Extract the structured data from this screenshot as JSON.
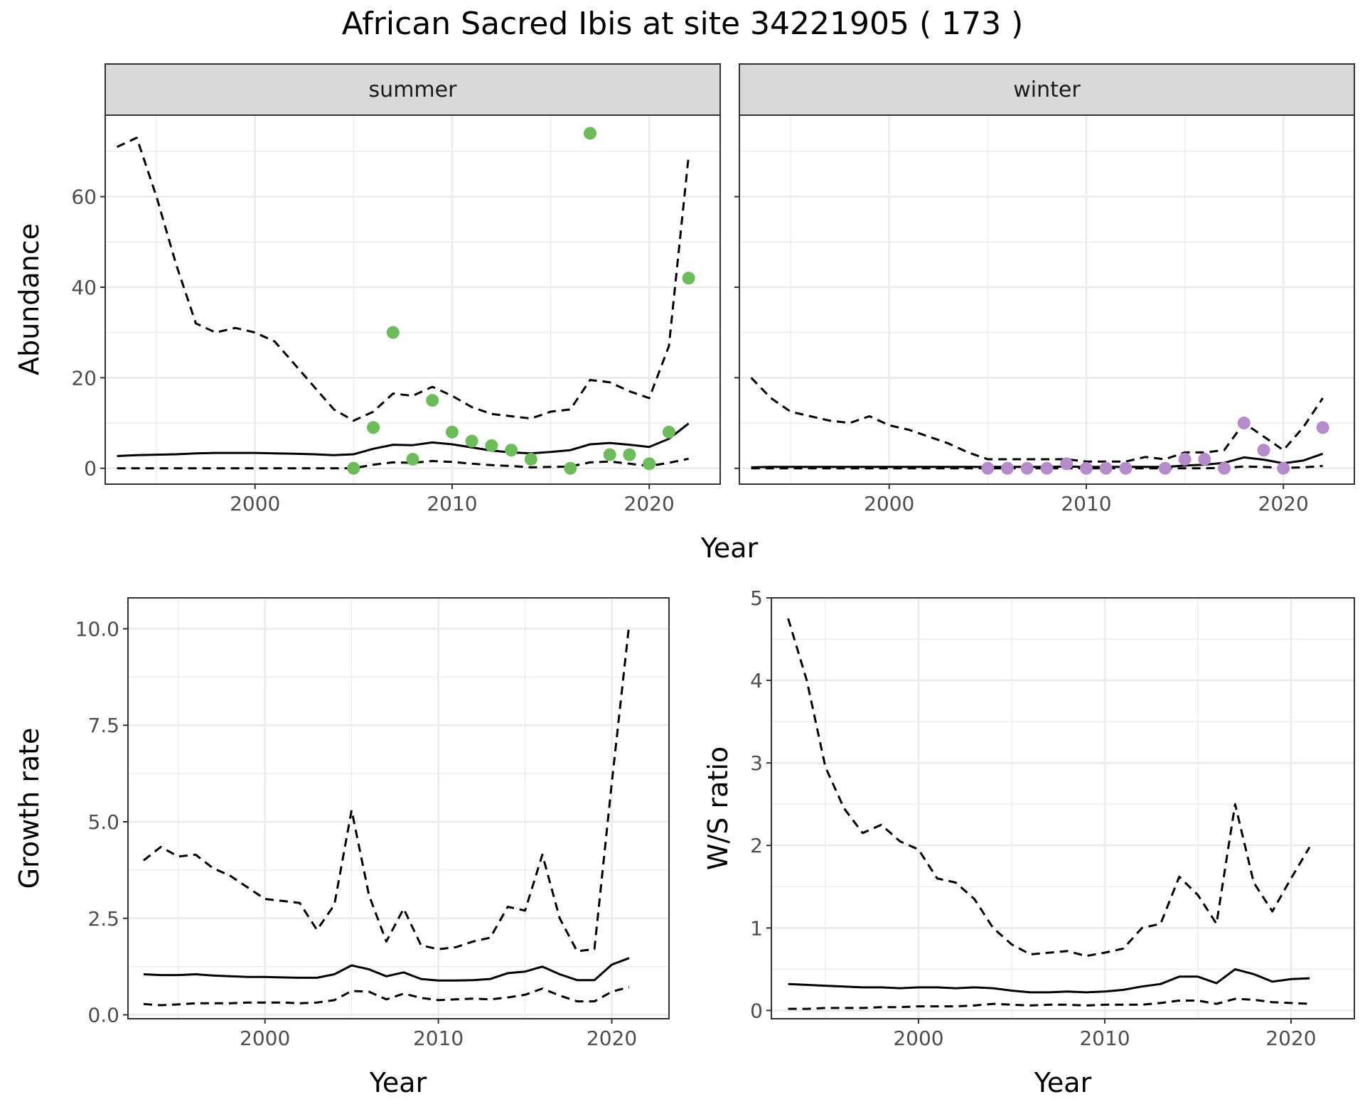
{
  "title": "African Sacred Ibis at site 34221905 ( 173 )",
  "colors": {
    "summer_points": "#6cbd5a",
    "winter_points": "#b48ccb",
    "line": "#000000",
    "strip_fill": "#d9d9d9",
    "grid": "#ebebeb"
  },
  "chart_data": [
    {
      "type": "line",
      "subtype": "faceted line + scatter",
      "ylabel": "Abundance",
      "xlabel": "Year",
      "xlim": [
        1992.4,
        2023.6
      ],
      "ylim": [
        -3.5,
        78
      ],
      "x_ticks": [
        2000,
        2010,
        2020
      ],
      "y_ticks": [
        0,
        20,
        40,
        60
      ],
      "grid": true,
      "facets": [
        {
          "label": "summer",
          "series": [
            {
              "style": "dashed",
              "x": [
                1993,
                1994,
                1995,
                1996,
                1997,
                1998,
                1999,
                2000,
                2001,
                2002,
                2003,
                2004,
                2005,
                2006,
                2007,
                2008,
                2009,
                2010,
                2011,
                2012,
                2013,
                2014,
                2015,
                2016,
                2017,
                2018,
                2019,
                2020,
                2021,
                2022
              ],
              "values": [
                71,
                73,
                60,
                45,
                32,
                30,
                31,
                30,
                28,
                23,
                18,
                13,
                10.5,
                12.5,
                16.5,
                16,
                18,
                16,
                13.5,
                12,
                11.5,
                11,
                12.5,
                13,
                19.5,
                19,
                17,
                15.5,
                27,
                69
              ]
            },
            {
              "style": "solid",
              "x": [
                1993,
                1994,
                1995,
                1996,
                1997,
                1998,
                1999,
                2000,
                2001,
                2002,
                2003,
                2004,
                2005,
                2006,
                2007,
                2008,
                2009,
                2010,
                2011,
                2012,
                2013,
                2014,
                2015,
                2016,
                2017,
                2018,
                2019,
                2020,
                2021,
                2022
              ],
              "values": [
                2.7,
                2.9,
                3.0,
                3.1,
                3.3,
                3.4,
                3.4,
                3.4,
                3.3,
                3.2,
                3.1,
                2.9,
                3.1,
                4.3,
                5.2,
                5.1,
                5.7,
                5.3,
                4.6,
                3.9,
                3.5,
                3.3,
                3.6,
                4.0,
                5.3,
                5.6,
                5.2,
                4.7,
                6.5,
                9.9
              ]
            },
            {
              "style": "dashed",
              "x": [
                1993,
                1994,
                1995,
                1996,
                1997,
                1998,
                1999,
                2000,
                2001,
                2002,
                2003,
                2004,
                2005,
                2006,
                2007,
                2008,
                2009,
                2010,
                2011,
                2012,
                2013,
                2014,
                2015,
                2016,
                2017,
                2018,
                2019,
                2020,
                2021,
                2022
              ],
              "values": [
                0,
                0,
                0,
                0,
                0,
                0,
                0,
                0,
                0,
                0,
                0,
                0,
                0,
                0.8,
                1.3,
                1.2,
                1.6,
                1.4,
                1.0,
                0.7,
                0.5,
                0.2,
                0.3,
                0.4,
                1.3,
                1.5,
                1.0,
                0.5,
                1.2,
                2.1
              ]
            },
            {
              "style": "points",
              "x": [
                2005,
                2006,
                2007,
                2008,
                2009,
                2010,
                2011,
                2012,
                2013,
                2014,
                2016,
                2017,
                2018,
                2019,
                2020,
                2021,
                2022
              ],
              "values": [
                0,
                9,
                30,
                2,
                15,
                8,
                6,
                5,
                4,
                2,
                0,
                74,
                3,
                3,
                1,
                8,
                42
              ]
            }
          ]
        },
        {
          "label": "winter",
          "series": [
            {
              "style": "dashed",
              "x": [
                1993,
                1994,
                1995,
                1996,
                1997,
                1998,
                1999,
                2000,
                2001,
                2002,
                2003,
                2004,
                2005,
                2006,
                2007,
                2008,
                2009,
                2010,
                2011,
                2012,
                2013,
                2014,
                2015,
                2016,
                2017,
                2018,
                2019,
                2020,
                2021,
                2022
              ],
              "values": [
                20,
                15.5,
                12.5,
                11.5,
                10.5,
                10,
                11.5,
                9.5,
                8.5,
                7,
                5.5,
                3.5,
                2,
                2,
                2,
                2,
                2,
                1.5,
                1.5,
                1.5,
                2.5,
                2,
                3.5,
                3.5,
                4,
                10,
                7,
                4,
                9,
                15.5
              ]
            },
            {
              "style": "solid",
              "x": [
                1993,
                1994,
                1995,
                1996,
                1997,
                1998,
                1999,
                2000,
                2001,
                2002,
                2003,
                2004,
                2005,
                2006,
                2007,
                2008,
                2009,
                2010,
                2011,
                2012,
                2013,
                2014,
                2015,
                2016,
                2017,
                2018,
                2019,
                2020,
                2021,
                2022
              ],
              "values": [
                0.2,
                0.3,
                0.3,
                0.3,
                0.3,
                0.3,
                0.3,
                0.3,
                0.3,
                0.3,
                0.3,
                0.3,
                0.3,
                0.3,
                0.3,
                0.3,
                0.4,
                0.3,
                0.3,
                0.3,
                0.3,
                0.3,
                0.6,
                0.8,
                1.2,
                2.4,
                1.9,
                1.1,
                1.7,
                3.2
              ]
            },
            {
              "style": "dashed",
              "x": [
                1993,
                1994,
                1995,
                1996,
                1997,
                1998,
                1999,
                2000,
                2001,
                2002,
                2003,
                2004,
                2005,
                2006,
                2007,
                2008,
                2009,
                2010,
                2011,
                2012,
                2013,
                2014,
                2015,
                2016,
                2017,
                2018,
                2019,
                2020,
                2021,
                2022
              ],
              "values": [
                0,
                0,
                0,
                0,
                0,
                0,
                0,
                0,
                0,
                0,
                0,
                0,
                0,
                0,
                0,
                0,
                0,
                0,
                0,
                0,
                0,
                0,
                0,
                0,
                0.1,
                0.4,
                0.3,
                0.1,
                0.2,
                0.5
              ]
            },
            {
              "style": "points",
              "x": [
                2005,
                2006,
                2007,
                2008,
                2009,
                2010,
                2011,
                2012,
                2014,
                2015,
                2016,
                2017,
                2018,
                2019,
                2020,
                2022
              ],
              "values": [
                0,
                0,
                0,
                0,
                1,
                0,
                0,
                0,
                0,
                2,
                2,
                0,
                10,
                4,
                0,
                9
              ]
            }
          ]
        }
      ]
    },
    {
      "type": "line",
      "ylabel": "Growth rate",
      "xlabel": "Year",
      "xlim": [
        1992.1,
        2023.3
      ],
      "ylim": [
        -0.1,
        10.8
      ],
      "x_ticks": [
        2000,
        2010,
        2020
      ],
      "y_ticks": [
        0.0,
        2.5,
        5.0,
        7.5,
        10.0
      ],
      "y_tick_labels": [
        "0.0",
        "2.5",
        "5.0",
        "7.5",
        "10.0"
      ],
      "grid": true,
      "series": [
        {
          "style": "dashed",
          "x": [
            1993,
            1994,
            1995,
            1996,
            1997,
            1998,
            1999,
            2000,
            2001,
            2002,
            2003,
            2004,
            2005,
            2006,
            2007,
            2008,
            2009,
            2010,
            2011,
            2012,
            2013,
            2014,
            2015,
            2016,
            2017,
            2018,
            2019,
            2020,
            2021
          ],
          "values": [
            4.0,
            4.35,
            4.1,
            4.15,
            3.8,
            3.6,
            3.3,
            3.0,
            2.95,
            2.9,
            2.2,
            2.85,
            5.3,
            3.1,
            1.9,
            2.75,
            1.8,
            1.7,
            1.75,
            1.9,
            2.0,
            2.8,
            2.7,
            4.15,
            2.5,
            1.65,
            1.7,
            6.0,
            10.1
          ]
        },
        {
          "style": "solid",
          "x": [
            1993,
            1994,
            1995,
            1996,
            1997,
            1998,
            1999,
            2000,
            2001,
            2002,
            2003,
            2004,
            2005,
            2006,
            2007,
            2008,
            2009,
            2010,
            2011,
            2012,
            2013,
            2014,
            2015,
            2016,
            2017,
            2018,
            2019,
            2020,
            2021
          ],
          "values": [
            1.05,
            1.03,
            1.03,
            1.05,
            1.02,
            1.0,
            0.98,
            0.98,
            0.97,
            0.96,
            0.96,
            1.05,
            1.28,
            1.18,
            1.0,
            1.1,
            0.93,
            0.89,
            0.89,
            0.9,
            0.93,
            1.08,
            1.12,
            1.25,
            1.05,
            0.9,
            0.9,
            1.3,
            1.47
          ]
        },
        {
          "style": "dashed",
          "x": [
            1993,
            1994,
            1995,
            1996,
            1997,
            1998,
            1999,
            2000,
            2001,
            2002,
            2003,
            2004,
            2005,
            2006,
            2007,
            2008,
            2009,
            2010,
            2011,
            2012,
            2013,
            2014,
            2015,
            2016,
            2017,
            2018,
            2019,
            2020,
            2021
          ],
          "values": [
            0.28,
            0.25,
            0.27,
            0.3,
            0.3,
            0.3,
            0.32,
            0.32,
            0.32,
            0.3,
            0.32,
            0.38,
            0.62,
            0.6,
            0.4,
            0.55,
            0.44,
            0.38,
            0.4,
            0.42,
            0.4,
            0.45,
            0.52,
            0.68,
            0.5,
            0.35,
            0.35,
            0.6,
            0.72
          ]
        }
      ]
    },
    {
      "type": "line",
      "ylabel": "W/S ratio",
      "xlabel": "Year",
      "xlim": [
        1992.1,
        2023.4
      ],
      "ylim": [
        -0.1,
        5.0
      ],
      "x_ticks": [
        2000,
        2010,
        2020
      ],
      "y_ticks": [
        0,
        1,
        2,
        3,
        4,
        5
      ],
      "grid": true,
      "series": [
        {
          "style": "dashed",
          "x": [
            1993,
            1994,
            1995,
            1996,
            1997,
            1998,
            1999,
            2000,
            2001,
            2002,
            2003,
            2004,
            2005,
            2006,
            2007,
            2008,
            2009,
            2010,
            2011,
            2012,
            2013,
            2014,
            2015,
            2016,
            2017,
            2018,
            2019,
            2020,
            2021
          ],
          "values": [
            4.75,
            4.0,
            2.95,
            2.45,
            2.15,
            2.25,
            2.05,
            1.95,
            1.6,
            1.55,
            1.35,
            1.0,
            0.8,
            0.68,
            0.7,
            0.72,
            0.66,
            0.7,
            0.75,
            1.0,
            1.05,
            1.62,
            1.4,
            1.05,
            2.5,
            1.55,
            1.2,
            1.6,
            1.98
          ]
        },
        {
          "style": "solid",
          "x": [
            1993,
            1994,
            1995,
            1996,
            1997,
            1998,
            1999,
            2000,
            2001,
            2002,
            2003,
            2004,
            2005,
            2006,
            2007,
            2008,
            2009,
            2010,
            2011,
            2012,
            2013,
            2014,
            2015,
            2016,
            2017,
            2018,
            2019,
            2020,
            2021
          ],
          "values": [
            0.32,
            0.31,
            0.3,
            0.29,
            0.28,
            0.28,
            0.27,
            0.28,
            0.28,
            0.27,
            0.28,
            0.27,
            0.24,
            0.22,
            0.22,
            0.23,
            0.22,
            0.23,
            0.25,
            0.29,
            0.32,
            0.41,
            0.41,
            0.33,
            0.5,
            0.44,
            0.35,
            0.38,
            0.39
          ]
        },
        {
          "style": "dashed",
          "x": [
            1993,
            1994,
            1995,
            1996,
            1997,
            1998,
            1999,
            2000,
            2001,
            2002,
            2003,
            2004,
            2005,
            2006,
            2007,
            2008,
            2009,
            2010,
            2011,
            2012,
            2013,
            2014,
            2015,
            2016,
            2017,
            2018,
            2019,
            2020,
            2021
          ],
          "values": [
            0.02,
            0.02,
            0.03,
            0.03,
            0.03,
            0.04,
            0.04,
            0.05,
            0.05,
            0.05,
            0.06,
            0.08,
            0.07,
            0.06,
            0.07,
            0.07,
            0.06,
            0.07,
            0.07,
            0.07,
            0.09,
            0.12,
            0.12,
            0.08,
            0.14,
            0.13,
            0.1,
            0.09,
            0.08
          ]
        }
      ]
    }
  ]
}
